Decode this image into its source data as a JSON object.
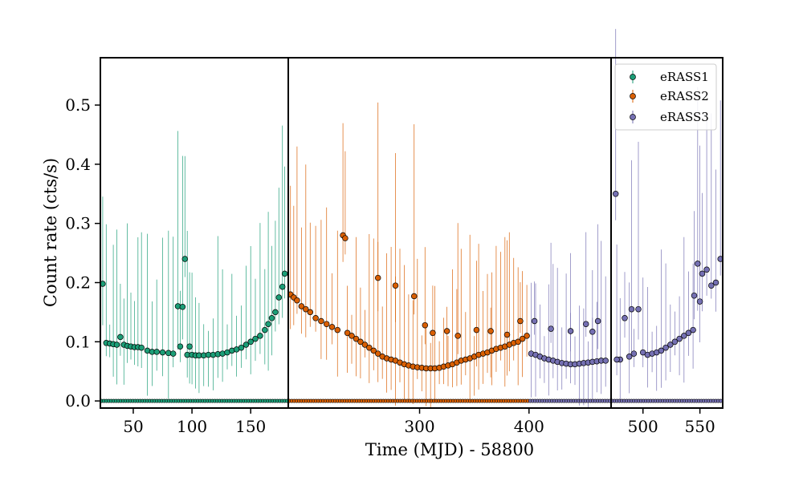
{
  "chart_data": {
    "type": "scatter",
    "xlabel": "Time (MJD) - 58800",
    "ylabel": "Count rate (cts/s)",
    "ylim": [
      -0.012,
      0.58
    ],
    "yticks": [
      "0.0",
      "0.1",
      "0.2",
      "0.3",
      "0.4",
      "0.5"
    ],
    "legend": {
      "placement": "top-right",
      "entries": [
        "eRASS1",
        "eRASS2",
        "eRASS3"
      ]
    },
    "colors": {
      "eRASS1": "#1b9e77",
      "eRASS2": "#d95f02",
      "eRASS3": "#7570b3",
      "frame": "#000000"
    },
    "panels": [
      {
        "xlim": [
          22,
          182
        ],
        "xticks": [
          "50",
          "100",
          "150"
        ],
        "segments": [
          {
            "series": "eRASS1",
            "x": [
              24,
              27,
              30,
              33,
              36,
              39,
              42,
              45,
              48,
              51,
              54,
              57,
              62,
              66,
              70,
              75,
              80,
              84,
              88,
              90,
              92,
              94,
              96,
              98,
              100,
              103,
              106,
              110,
              114,
              118,
              122,
              126,
              130,
              134,
              138,
              142,
              146,
              150,
              154,
              158,
              162,
              165,
              168,
              171,
              174,
              177,
              179
            ],
            "y": [
              0.198,
              0.098,
              0.097,
              0.096,
              0.095,
              0.108,
              0.095,
              0.093,
              0.092,
              0.091,
              0.091,
              0.09,
              0.085,
              0.083,
              0.083,
              0.082,
              0.081,
              0.08,
              0.16,
              0.092,
              0.159,
              0.24,
              0.078,
              0.092,
              0.078,
              0.077,
              0.077,
              0.077,
              0.078,
              0.078,
              0.079,
              0.08,
              0.082,
              0.085,
              0.087,
              0.09,
              0.095,
              0.1,
              0.105,
              0.11,
              0.12,
              0.13,
              0.14,
              0.15,
              0.175,
              0.193,
              0.215
            ]
          }
        ]
      },
      {
        "xlim": [
          180,
          475
        ],
        "xticks": [
          "300",
          "400"
        ],
        "segments": [
          {
            "series": "eRASS2",
            "x": [
              182,
              185,
              188,
              192,
              196,
              200,
              205,
              210,
              215,
              220,
              225,
              230,
              232,
              234,
              238,
              242,
              246,
              250,
              254,
              258,
              262,
              266,
              270,
              274,
              278,
              282,
              286,
              290,
              294,
              298,
              302,
              306,
              310,
              314,
              318,
              322,
              326,
              330,
              334,
              338,
              342,
              346,
              350,
              354,
              358,
              362,
              366,
              370,
              374,
              378,
              382,
              386,
              390,
              394,
              398
            ],
            "y": [
              0.18,
              0.175,
              0.17,
              0.16,
              0.155,
              0.15,
              0.14,
              0.135,
              0.13,
              0.125,
              0.12,
              0.28,
              0.275,
              0.115,
              0.11,
              0.105,
              0.1,
              0.095,
              0.09,
              0.085,
              0.08,
              0.075,
              0.072,
              0.07,
              0.068,
              0.065,
              0.062,
              0.06,
              0.058,
              0.057,
              0.056,
              0.055,
              0.055,
              0.055,
              0.056,
              0.058,
              0.06,
              0.062,
              0.065,
              0.068,
              0.07,
              0.072,
              0.075,
              0.078,
              0.08,
              0.082,
              0.085,
              0.088,
              0.09,
              0.092,
              0.095,
              0.098,
              0.1,
              0.105,
              0.11
            ]
          },
          {
            "series": "eRASS2",
            "x": [
              262,
              278,
              295,
              305,
              312,
              325,
              335,
              352,
              365,
              380,
              392
            ],
            "y": [
              0.208,
              0.195,
              0.177,
              0.128,
              0.115,
              0.118,
              0.11,
              0.12,
              0.118,
              0.112,
              0.135
            ]
          },
          {
            "series": "eRASS3",
            "x": [
              402,
              406,
              410,
              414,
              418,
              422,
              426,
              430,
              434,
              438,
              442,
              446,
              450,
              454,
              458,
              462,
              466,
              470
            ],
            "y": [
              0.08,
              0.078,
              0.075,
              0.072,
              0.07,
              0.068,
              0.066,
              0.064,
              0.063,
              0.062,
              0.062,
              0.063,
              0.064,
              0.065,
              0.066,
              0.067,
              0.068,
              0.068
            ]
          },
          {
            "series": "eRASS3",
            "x": [
              405,
              420,
              438,
              452,
              458,
              463
            ],
            "y": [
              0.135,
              0.122,
              0.118,
              0.13,
              0.117,
              0.135
            ]
          }
        ]
      },
      {
        "xlim": [
          472,
          570
        ],
        "xticks": [
          "500",
          "550"
        ],
        "segments": [
          {
            "series": "eRASS3",
            "x": [
              476,
              480,
              484,
              488,
              492,
              496,
              500,
              504,
              508,
              512,
              516,
              520,
              524,
              528,
              532,
              536,
              540,
              544,
              548,
              552,
              556,
              560,
              564,
              568
            ],
            "y": [
              0.35,
              0.07,
              0.14,
              0.075,
              0.08,
              0.155,
              0.082,
              0.078,
              0.08,
              0.082,
              0.085,
              0.09,
              0.095,
              0.1,
              0.105,
              0.11,
              0.115,
              0.12,
              0.232,
              0.215,
              0.222,
              0.195,
              0.2,
              0.24
            ]
          },
          {
            "series": "eRASS3",
            "x": [
              477,
              490,
              545,
              550
            ],
            "y": [
              0.07,
              0.155,
              0.178,
              0.168
            ]
          }
        ]
      }
    ]
  }
}
